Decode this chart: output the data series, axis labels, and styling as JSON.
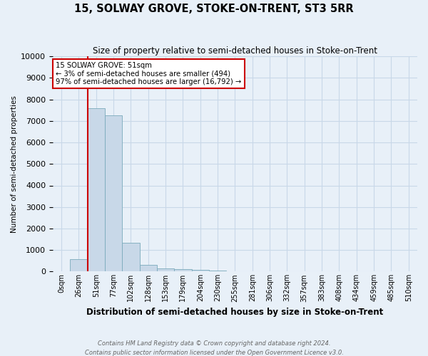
{
  "title": "15, SOLWAY GROVE, STOKE-ON-TRENT, ST3 5RR",
  "subtitle": "Size of property relative to semi-detached houses in Stoke-on-Trent",
  "xlabel": "Distribution of semi-detached houses by size in Stoke-on-Trent",
  "ylabel": "Number of semi-detached properties",
  "footnote1": "Contains HM Land Registry data © Crown copyright and database right 2024.",
  "footnote2": "Contains public sector information licensed under the Open Government Licence v3.0.",
  "bar_labels": [
    "0sqm",
    "26sqm",
    "51sqm",
    "77sqm",
    "102sqm",
    "128sqm",
    "153sqm",
    "179sqm",
    "204sqm",
    "230sqm",
    "255sqm",
    "281sqm",
    "306sqm",
    "332sqm",
    "357sqm",
    "383sqm",
    "408sqm",
    "434sqm",
    "459sqm",
    "485sqm",
    "510sqm"
  ],
  "bar_values": [
    0,
    560,
    7600,
    7250,
    1350,
    310,
    155,
    105,
    85,
    60,
    0,
    0,
    0,
    0,
    0,
    0,
    0,
    0,
    0,
    0,
    0
  ],
  "bar_color": "#c8d8e8",
  "bar_edge_color": "#7aaabb",
  "highlight_color": "#cc0000",
  "highlight_bar_index": 2,
  "ylim": [
    0,
    10000
  ],
  "yticks": [
    0,
    1000,
    2000,
    3000,
    4000,
    5000,
    6000,
    7000,
    8000,
    9000,
    10000
  ],
  "annotation_title": "15 SOLWAY GROVE: 51sqm",
  "annotation_line1": "← 3% of semi-detached houses are smaller (494)",
  "annotation_line2": "97% of semi-detached houses are larger (16,792) →",
  "annotation_box_color": "#ffffff",
  "annotation_box_edge": "#cc0000",
  "grid_color": "#c8d8e8",
  "bg_color": "#e8f0f8"
}
